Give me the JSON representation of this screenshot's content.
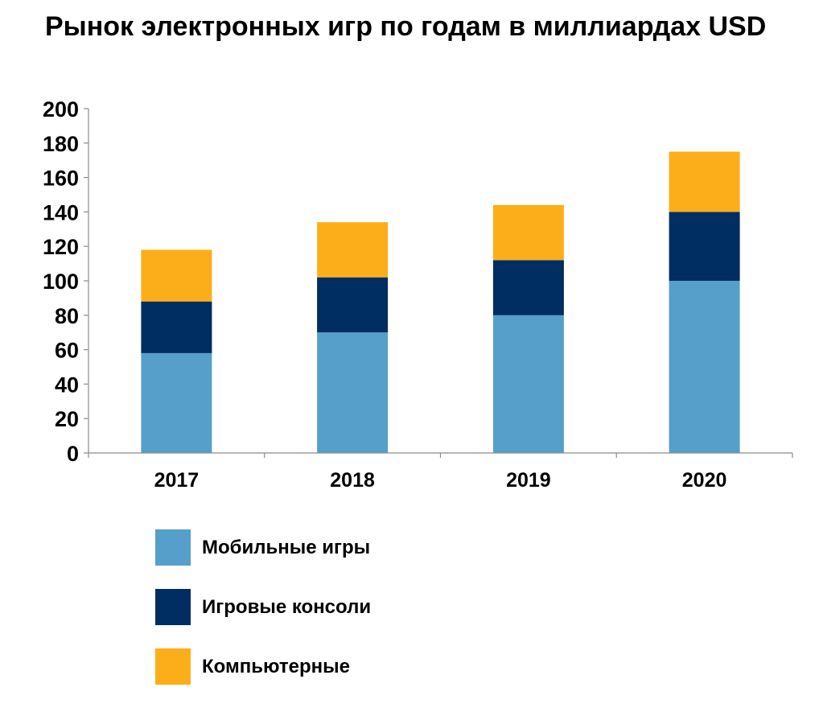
{
  "chart_data": {
    "type": "bar",
    "stacked": true,
    "title": "Рынок электронных игр по годам в миллиардах USD",
    "xlabel": "",
    "ylabel": "",
    "categories": [
      "2017",
      "2018",
      "2019",
      "2020"
    ],
    "series": [
      {
        "name": "Мобильные игры",
        "color": "#569fca",
        "values": [
          58,
          70,
          80,
          100
        ]
      },
      {
        "name": "Игровые консоли",
        "color": "#002d62",
        "values": [
          30,
          32,
          32,
          40
        ]
      },
      {
        "name": "Компьютерные",
        "color": "#fcae1a",
        "values": [
          30,
          32,
          32,
          35
        ]
      }
    ],
    "ylim": [
      0,
      200
    ],
    "yticks": [
      "0",
      "20",
      "40",
      "60",
      "80",
      "100",
      "120",
      "140",
      "160",
      "180",
      "200"
    ],
    "grid": false,
    "legend": "bottom"
  }
}
